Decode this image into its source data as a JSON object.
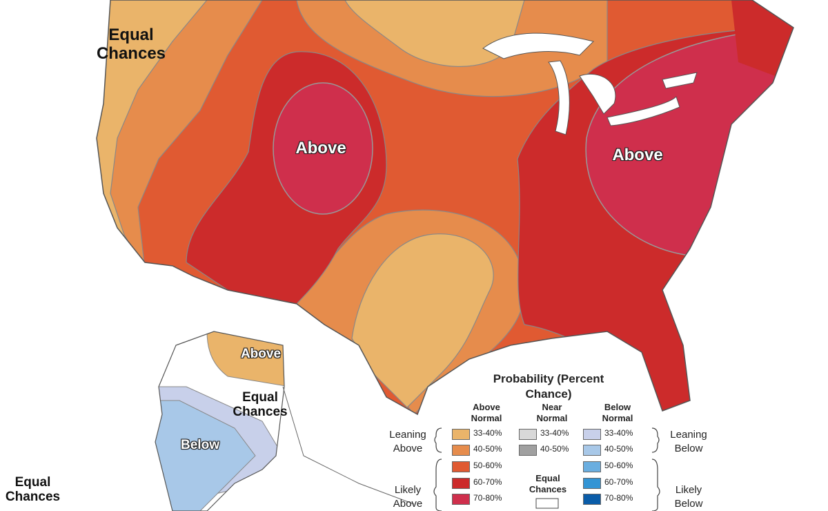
{
  "map_labels": {
    "west": "Equal Chances",
    "central": "Above",
    "east": "Above",
    "alaska_north": "Above",
    "alaska_middle": "Equal Chances",
    "alaska_south": "Below",
    "hawaii": "Equal Chances"
  },
  "legend": {
    "title": "Probability (Percent Chance)",
    "columns": [
      {
        "heading": "Above Normal",
        "items": [
          {
            "label": "33-40%",
            "color": "#eab46a"
          },
          {
            "label": "40-50%",
            "color": "#e68c4c"
          },
          {
            "label": "50-60%",
            "color": "#e05a32"
          },
          {
            "label": "60-70%",
            "color": "#cc2b2b"
          },
          {
            "label": "70-80%",
            "color": "#cf2f4c"
          }
        ]
      },
      {
        "heading": "Near Normal",
        "items": [
          {
            "label": "33-40%",
            "color": "#d8d8d8"
          },
          {
            "label": "40-50%",
            "color": "#a0a0a0"
          }
        ]
      },
      {
        "heading": "Below Normal",
        "items": [
          {
            "label": "33-40%",
            "color": "#c8d0ea"
          },
          {
            "label": "40-50%",
            "color": "#a8c8e8"
          },
          {
            "label": "50-60%",
            "color": "#6aaee0"
          },
          {
            "label": "60-70%",
            "color": "#3394d4"
          },
          {
            "label": "70-80%",
            "color": "#0a5ca8"
          }
        ]
      }
    ],
    "left_groups": [
      "Leaning Above",
      "Likely Above"
    ],
    "right_groups": [
      "Leaning Below",
      "Likely Below"
    ],
    "equal_chances": "Equal Chances"
  }
}
